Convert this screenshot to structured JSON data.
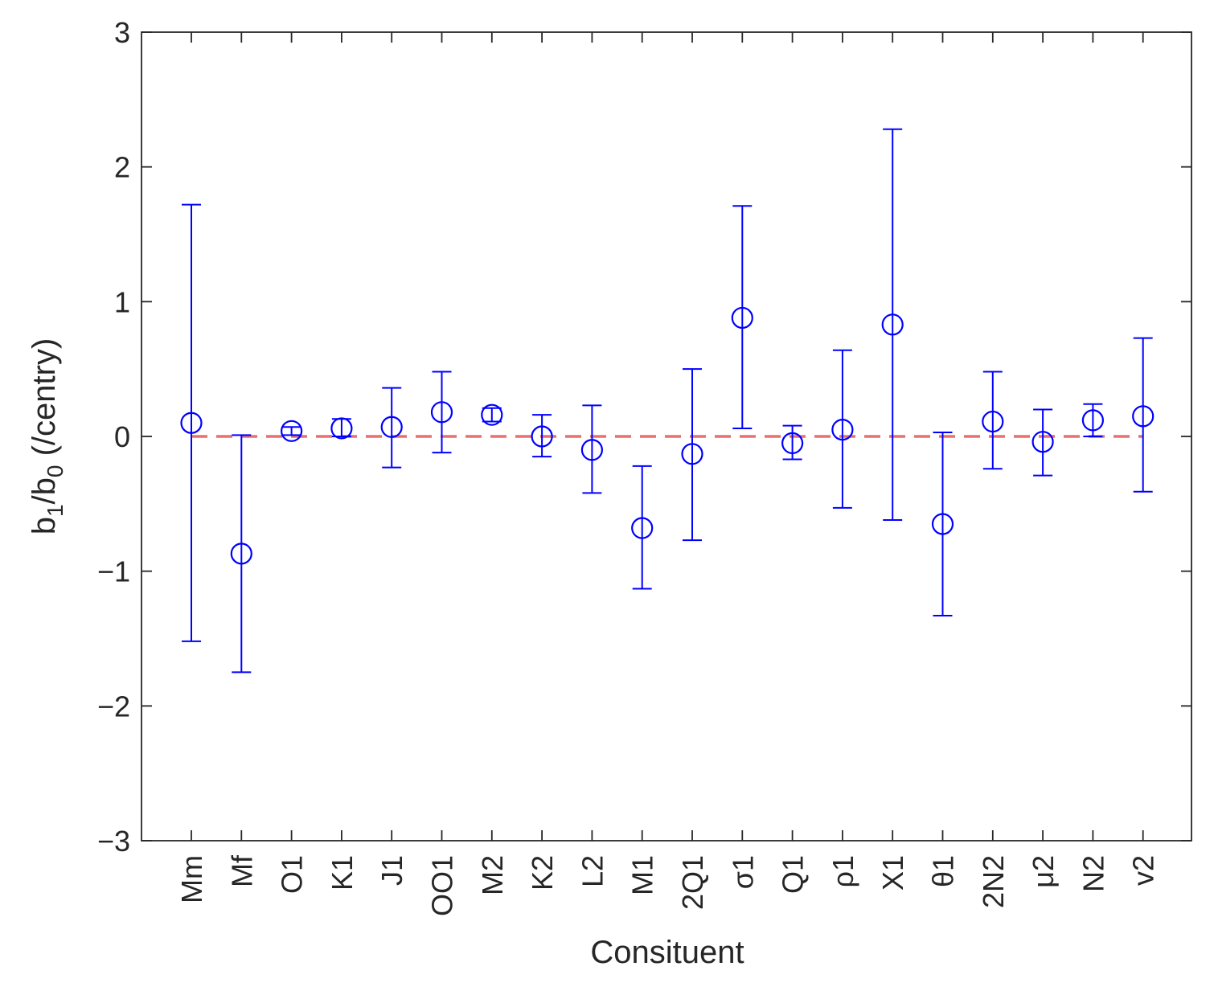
{
  "chart_data": {
    "type": "scatter",
    "xlabel": "Consituent",
    "ylabel": "b1/b0 (/centry)",
    "ylabel_parts": {
      "b": "b",
      "sub1": "1",
      "slash": "/b",
      "sub0": "0",
      "rest": " (/centry)"
    },
    "ylim": [
      -3,
      3
    ],
    "yticks": [
      -3,
      -2,
      -1,
      0,
      1,
      2,
      3
    ],
    "ytick_labels": [
      "−3",
      "−2",
      "−1",
      "0",
      "1",
      "2",
      "3"
    ],
    "grid": false,
    "legend": "none",
    "categories": [
      "Mm",
      "Mf",
      "O1",
      "K1",
      "J1",
      "OO1",
      "M2",
      "K2",
      "L2",
      "M1",
      "2Q1",
      "σ1",
      "Q1",
      "ρ1",
      "X1",
      "θ1",
      "2N2",
      "μ2",
      "N2",
      "v2"
    ],
    "series": [
      {
        "marker": "open-circle",
        "color": "#0000ff",
        "values": [
          0.1,
          -0.87,
          0.04,
          0.06,
          0.07,
          0.18,
          0.16,
          0.0,
          -0.1,
          -0.68,
          -0.13,
          0.88,
          -0.05,
          0.05,
          0.83,
          -0.65,
          0.11,
          -0.04,
          0.12,
          0.15
        ],
        "lower": [
          -1.52,
          -1.75,
          0.01,
          0.0,
          -0.23,
          -0.12,
          0.11,
          -0.15,
          -0.42,
          -1.13,
          -0.77,
          0.06,
          -0.17,
          -0.53,
          -0.62,
          -1.33,
          -0.24,
          -0.29,
          0.0,
          -0.41
        ],
        "upper": [
          1.72,
          0.01,
          0.07,
          0.13,
          0.36,
          0.48,
          0.21,
          0.16,
          0.23,
          -0.22,
          0.5,
          1.71,
          0.08,
          0.64,
          2.28,
          0.03,
          0.48,
          0.2,
          0.24,
          0.73
        ]
      }
    ],
    "reference_line": {
      "y": 0,
      "color": "#e8706f",
      "style": "dashed"
    }
  }
}
